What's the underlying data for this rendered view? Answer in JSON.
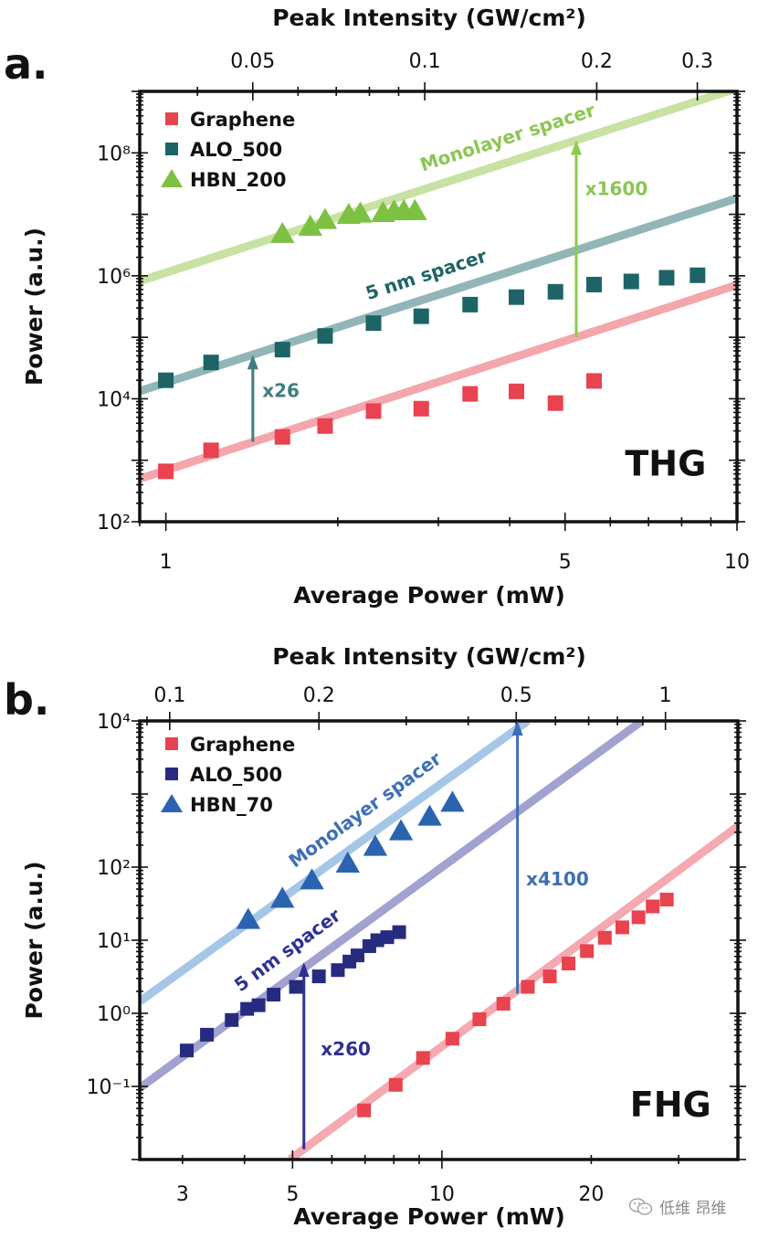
{
  "watermark": {
    "text": "低维 昂维",
    "icon": "wechat-icon"
  },
  "chart_data": [
    {
      "panel_label": "a.",
      "type": "scatter",
      "scale": "log-log",
      "xlabel": "Average Power (mW)",
      "ylabel": "Power (a.u.)",
      "xlim": [
        0.9,
        10
      ],
      "ylim": [
        100,
        1000000000
      ],
      "x_ticks": [
        1,
        5,
        10
      ],
      "x_tick_labels": [
        "1",
        "5",
        "10"
      ],
      "y_ticks": [
        100,
        10000,
        1000000,
        100000000
      ],
      "y_tick_labels": [
        "10²",
        "10⁴",
        "10⁶",
        "10⁸"
      ],
      "top_axis": {
        "label": "Peak Intensity (GW/cm²)",
        "range": [
          0.0317,
          0.352
        ],
        "ticks": [
          0.05,
          0.1,
          0.2,
          0.3
        ],
        "tick_labels": [
          "0.05",
          "0.1",
          "0.2",
          "0.3"
        ]
      },
      "legend": "top-left",
      "series": [
        {
          "name": "Graphene",
          "marker": "square",
          "color": "#e8434f",
          "x": [
            1.0,
            1.2,
            1.6,
            1.9,
            2.31,
            2.8,
            3.41,
            4.11,
            4.81,
            5.62
          ],
          "y": [
            660,
            1450,
            2400,
            3600,
            6300,
            6900,
            12000,
            13200,
            8500,
            19500
          ]
        },
        {
          "name": "ALO_500",
          "marker": "square",
          "color": "#1d6467",
          "x": [
            1.0,
            1.2,
            1.6,
            1.9,
            2.31,
            2.8,
            3.41,
            4.11,
            4.81,
            5.62,
            6.53,
            7.53,
            8.53
          ],
          "y": [
            20000,
            39000,
            63000,
            105000,
            170000,
            220000,
            340000,
            450000,
            550000,
            720000,
            810000,
            930000,
            1020000
          ]
        },
        {
          "name": "HBN_200",
          "marker": "triangle",
          "color": "#7dc142",
          "x": [
            1.6,
            1.79,
            1.9,
            2.09,
            2.19,
            2.4,
            2.51,
            2.61,
            2.73
          ],
          "y": [
            4800000,
            6300000,
            8100000,
            9800000,
            10300000,
            10500000,
            11200000,
            11300000,
            11300000
          ]
        }
      ],
      "fit_lines": [
        {
          "color": "#f4a6ad",
          "from": [
            0.9,
            500
          ],
          "to": [
            10,
            708000
          ]
        },
        {
          "color": "#92b6b8",
          "from": [
            0.9,
            13300
          ],
          "to": [
            10,
            18200000
          ]
        },
        {
          "color": "#c7e2a2",
          "from": [
            0.9,
            820000
          ],
          "to": [
            10.5,
            1300000000
          ]
        }
      ],
      "arrows": [
        {
          "color": "#3f7d80",
          "x": 1.42,
          "from": 1990,
          "to": 52000
        },
        {
          "color": "#8ccc4e",
          "x": 5.23,
          "from": 101000,
          "to": 160000000
        }
      ],
      "annotations": [
        {
          "text": "Monolayer spacer",
          "color": "#8cc653",
          "x": 3.97,
          "y": 170000000,
          "along_line": 2
        },
        {
          "text": "5 nm spacer",
          "color": "#1d6467",
          "x": 2.86,
          "y": 1000000,
          "along_line": 1
        },
        {
          "text": "x26",
          "color": "#3f7d80",
          "x": 1.59,
          "y": 13000
        },
        {
          "text": "x1600",
          "color": "#8cc653",
          "x": 6.15,
          "y": 25000000
        },
        {
          "text": "THG",
          "color": "#111111",
          "x": 7.5,
          "y": 810,
          "big": true
        }
      ]
    },
    {
      "panel_label": "b.",
      "type": "scatter",
      "scale": "log-log",
      "xlabel": "Average Power (mW)",
      "ylabel": "Power (a.u.)",
      "xlim": [
        2.46,
        39.5
      ],
      "ylim": [
        0.01,
        10000
      ],
      "x_ticks": [
        3,
        5,
        10,
        20
      ],
      "x_tick_labels": [
        "3",
        "5",
        "10",
        "20"
      ],
      "y_ticks": [
        0.1,
        1,
        10,
        100,
        10000
      ],
      "y_tick_labels": [
        "10⁻¹",
        "10⁰",
        "10¹",
        "10²",
        "10⁴"
      ],
      "top_axis": {
        "label": "Peak Intensity (GW/cm²)",
        "range": [
          0.087,
          1.4
        ],
        "ticks": [
          0.1,
          0.2,
          0.5,
          1
        ],
        "tick_labels": [
          "0.1",
          "0.2",
          "0.5",
          "1"
        ]
      },
      "legend": "top-left",
      "series": [
        {
          "name": "Graphene",
          "marker": "square",
          "color": "#e8434f",
          "x": [
            6.97,
            8.07,
            9.16,
            10.5,
            11.9,
            13.3,
            14.9,
            16.5,
            18.0,
            19.6,
            21.3,
            23.1,
            24.9,
            26.6,
            28.4
          ],
          "y": [
            0.047,
            0.105,
            0.245,
            0.45,
            0.83,
            1.35,
            2.3,
            3.2,
            4.8,
            7.1,
            10.8,
            15,
            20.6,
            29,
            36
          ]
        },
        {
          "name": "ALO_500",
          "marker": "square",
          "color": "#262b80",
          "x": [
            3.06,
            3.36,
            3.77,
            4.05,
            4.27,
            4.58,
            5.08,
            5.65,
            6.17,
            6.51,
            6.76,
            7.14,
            7.41,
            7.76,
            8.2
          ],
          "y": [
            0.31,
            0.51,
            0.81,
            1.15,
            1.29,
            1.8,
            2.3,
            3.2,
            3.9,
            5.1,
            6.2,
            8.3,
            10,
            11,
            12.9
          ]
        },
        {
          "name": "HBN_70",
          "marker": "triangle",
          "color": "#2a64b0",
          "x": [
            4.07,
            4.77,
            5.47,
            6.46,
            7.34,
            8.27,
            9.45,
            10.5
          ],
          "y": [
            19,
            37,
            66,
            112,
            190,
            310,
            490,
            760
          ]
        }
      ],
      "fit_lines": [
        {
          "color": "#f5a9b0",
          "from": [
            4.94,
            0.01
          ],
          "to": [
            39.5,
            363
          ]
        },
        {
          "color": "#a1a2d0",
          "from": [
            2.46,
            0.095
          ],
          "to": [
            25.3,
            10000
          ]
        },
        {
          "color": "#a6c6e8",
          "from": [
            2.46,
            1.45
          ],
          "to": [
            14.9,
            10000
          ]
        }
      ],
      "arrows": [
        {
          "color": "#2e3192",
          "x": 5.27,
          "from": 0.0138,
          "to": 5.0
        },
        {
          "color": "#3d6fb6",
          "x": 14.2,
          "from": 1.86,
          "to": 10000
        }
      ],
      "annotations": [
        {
          "text": "Monolayer spacer",
          "color": "#3d6fb6",
          "x": 7.02,
          "y": 590,
          "along_line": 2
        },
        {
          "text": "5 nm spacer",
          "color": "#2e3192",
          "x": 4.9,
          "y": 7.1,
          "along_line": 1
        },
        {
          "text": "x260",
          "color": "#2e3192",
          "x": 6.4,
          "y": 0.31
        },
        {
          "text": "x4100",
          "color": "#3d6fb6",
          "x": 17.1,
          "y": 66
        },
        {
          "text": "FHG",
          "color": "#111111",
          "x": 28.9,
          "y": 0.052,
          "big": true
        }
      ]
    }
  ]
}
